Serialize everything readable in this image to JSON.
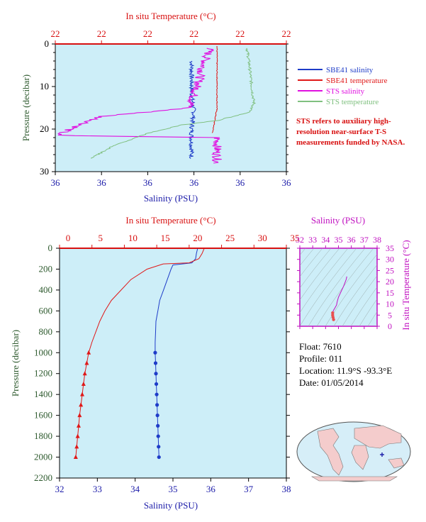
{
  "colors": {
    "plot_bg": "#cdeef8",
    "temp_axis": "#d81010",
    "sal_axis": "#1a1aa8",
    "pressure_axis": "#2e5a2e",
    "sbe41_salinity": "#1e3cc8",
    "sbe41_temperature": "#e01818",
    "sts_salinity": "#e010e0",
    "sts_temperature": "#80c080",
    "ts_axis": "#c010c0"
  },
  "top_chart": {
    "x_top_label": "In situ Temperature (°C)",
    "x_top_ticks": [
      "22",
      "22",
      "22",
      "22",
      "22",
      "22"
    ],
    "x_bottom_label": "Salinity (PSU)",
    "x_bottom_ticks": [
      "36",
      "36",
      "36",
      "36",
      "36",
      "36"
    ],
    "y_label": "Pressure (decibar)",
    "y_ticks": [
      "0",
      "10",
      "20",
      "30"
    ],
    "legend": [
      {
        "label": "SBE41 salinity",
        "color": "#1e3cc8"
      },
      {
        "label": "SBE41 temperature",
        "color": "#e01818"
      },
      {
        "label": "STS salinity",
        "color": "#e010e0"
      },
      {
        "label": "STS temperature",
        "color": "#80c080"
      }
    ],
    "note": "STS refers to auxiliary high-resolution near-surface T-S measurements funded by NASA."
  },
  "main_chart": {
    "x_top_label": "In situ Temperature (°C)",
    "x_top_ticks": [
      "0",
      "5",
      "10",
      "15",
      "20",
      "25",
      "30",
      "35"
    ],
    "x_bottom_label": "Salinity (PSU)",
    "x_bottom_ticks": [
      "32",
      "33",
      "34",
      "35",
      "36",
      "37",
      "38"
    ],
    "y_label": "Pressure (decibar)",
    "y_ticks": [
      "0",
      "200",
      "400",
      "600",
      "800",
      "1000",
      "1200",
      "1400",
      "1600",
      "1800",
      "2000",
      "2200"
    ]
  },
  "ts_chart": {
    "x_top_label": "Salinity (PSU)",
    "x_ticks": [
      "32",
      "33",
      "34",
      "35",
      "36",
      "37",
      "38"
    ],
    "y_label": "In situ Temperature (°C)",
    "y_ticks": [
      "0",
      "5",
      "10",
      "15",
      "20",
      "25",
      "30",
      "35"
    ]
  },
  "info": {
    "float": "Float:  7610",
    "profile": "Profile:  011",
    "location": "Location:  11.9°S  -93.3°E",
    "date": "Date:  01/05/2014"
  },
  "chart_data": [
    {
      "type": "line",
      "title": "",
      "xlabel": "Salinity (PSU) / In situ Temperature (°C)",
      "ylabel": "Pressure (decibar)",
      "ylim": [
        0,
        30
      ],
      "series": [
        {
          "name": "SBE41 salinity",
          "x_frac": [
            0.59,
            0.59,
            0.59,
            0.6,
            0.59,
            0.59,
            0.59
          ],
          "p": [
            4,
            8,
            12,
            16,
            20,
            24,
            27
          ]
        },
        {
          "name": "SBE41 temperature",
          "x_frac": [
            0.7,
            0.7,
            0.7,
            0.7,
            0.7,
            0.68
          ],
          "p": [
            0.5,
            2,
            5,
            10,
            15,
            21
          ]
        },
        {
          "name": "STS salinity",
          "x_frac": [
            0.67,
            0.64,
            0.62,
            0.6,
            0.58,
            0.4,
            0.2,
            0.0,
            0.7,
            0.7
          ],
          "p": [
            1,
            5,
            9,
            12,
            15,
            16,
            17,
            21.5,
            22,
            28
          ]
        },
        {
          "name": "STS temperature",
          "x_frac": [
            0.83,
            0.84,
            0.85,
            0.86,
            0.84,
            0.7,
            0.55,
            0.4,
            0.25,
            0.15
          ],
          "p": [
            1,
            5,
            10,
            14,
            16,
            18,
            19,
            21,
            24,
            27
          ]
        }
      ]
    },
    {
      "type": "line",
      "title": "",
      "xlabel": "Salinity (PSU)",
      "ylabel": "Pressure (decibar)",
      "xlim": [
        32,
        38
      ],
      "ylim": [
        2200,
        0
      ],
      "temperature_xlim": [
        0,
        35
      ],
      "series": [
        {
          "name": "Salinity (PSU)",
          "pressure": [
            5,
            50,
            100,
            140,
            160,
            200,
            300,
            400,
            500,
            600,
            700,
            800,
            900,
            1000,
            1100,
            1200,
            1300,
            1400,
            1500,
            1600,
            1700,
            1800,
            1900,
            2000
          ],
          "values": [
            35.65,
            35.62,
            35.6,
            35.5,
            35.0,
            34.95,
            34.85,
            34.75,
            34.65,
            34.6,
            34.55,
            34.54,
            34.53,
            34.53,
            34.54,
            34.55,
            34.56,
            34.57,
            34.58,
            34.59,
            34.6,
            34.61,
            34.62,
            34.63
          ]
        },
        {
          "name": "In situ Temperature (°C)",
          "pressure": [
            5,
            50,
            100,
            140,
            150,
            200,
            300,
            400,
            500,
            600,
            700,
            800,
            900,
            1000,
            1100,
            1200,
            1300,
            1400,
            1500,
            1600,
            1700,
            1800,
            1900,
            2000
          ],
          "values": [
            22.3,
            22.0,
            21.5,
            20.0,
            16.0,
            13.5,
            11.0,
            9.5,
            8.0,
            7.0,
            6.2,
            5.6,
            5.0,
            4.5,
            4.2,
            3.9,
            3.7,
            3.5,
            3.3,
            3.1,
            2.95,
            2.8,
            2.65,
            2.5
          ]
        }
      ],
      "markers_from_pressure": 1000
    },
    {
      "type": "scatter",
      "title": "",
      "xlabel": "Salinity (PSU)",
      "ylabel": "In situ Temperature (°C)",
      "xlim": [
        32,
        38
      ],
      "ylim": [
        0,
        35
      ],
      "series": [
        {
          "name": "T-S",
          "x": [
            35.65,
            35.6,
            35.4,
            35.2,
            35.0,
            34.9,
            34.85,
            34.7,
            34.6,
            34.55,
            34.55,
            34.58,
            34.62
          ],
          "y": [
            22.3,
            21.0,
            18.0,
            15.5,
            13.0,
            11.0,
            9.5,
            8.0,
            7.0,
            6.0,
            5.0,
            4.0,
            3.0
          ]
        }
      ]
    }
  ]
}
